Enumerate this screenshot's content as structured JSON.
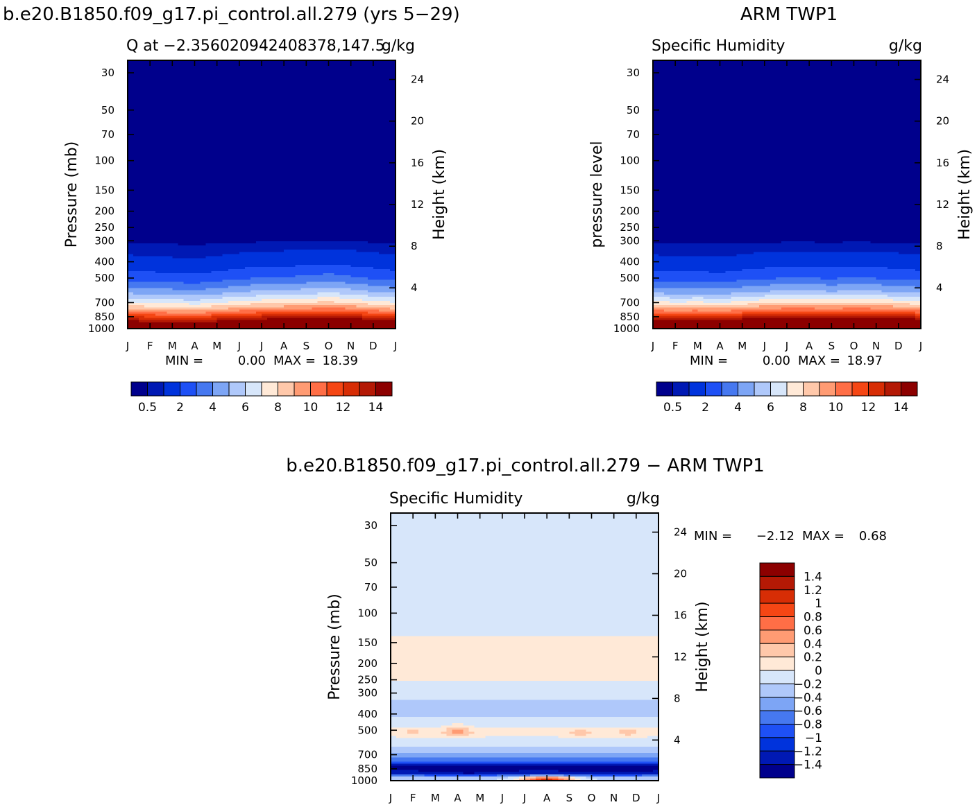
{
  "top_left_header": "b.e20.B1850.f09_g17.pi_control.all.279 (yrs 5−29)",
  "top_right_header": "ARM TWP1",
  "bottom_header": "b.e20.B1850.f09_g17.pi_control.all.279 − ARM TWP1",
  "months": [
    "J",
    "F",
    "M",
    "A",
    "M",
    "J",
    "J",
    "A",
    "S",
    "O",
    "N",
    "D",
    "J"
  ],
  "pressure_ticks": [
    "30",
    "50",
    "70",
    "100",
    "150",
    "200",
    "250",
    "300",
    "400",
    "500",
    "700",
    "850",
    "1000"
  ],
  "pressure_values": [
    30,
    50,
    70,
    100,
    150,
    200,
    250,
    300,
    400,
    500,
    700,
    850,
    1000
  ],
  "height_ticks": [
    "24",
    "20",
    "16",
    "12",
    "8",
    "4"
  ],
  "height_values": [
    24,
    20,
    16,
    12,
    8,
    4
  ],
  "colors": {
    "sequential": [
      "#00008c",
      "#0019b4",
      "#0033dc",
      "#1e50f5",
      "#4678f0",
      "#7da5f5",
      "#afc8fa",
      "#d7e6fa",
      "#ffe9d7",
      "#ffc8aa",
      "#ff9b73",
      "#ff6e46",
      "#f54614",
      "#d72d05",
      "#b41905",
      "#8c0000"
    ],
    "diverging": [
      "#00008c",
      "#0019b4",
      "#0033dc",
      "#1e50f5",
      "#4678f0",
      "#7da5f5",
      "#afc8fa",
      "#d7e6fa",
      "#ffe9d7",
      "#ffc8aa",
      "#ff9b73",
      "#ff6e46",
      "#f54614",
      "#d72d05",
      "#b41905",
      "#8c0000"
    ]
  },
  "chart_data": [
    {
      "type": "heatmap",
      "title": "Q at −2.356020942408378,147.5",
      "left_label": "",
      "right_label": "g/kg",
      "ylabel": "Pressure (mb)",
      "y2label": "Height (km)",
      "min_text": "MIN =",
      "min_value": "0.00",
      "max_text": "MAX =",
      "max_value": "18.39",
      "colorbar_labels": [
        "0.5",
        "2",
        "4",
        "6",
        "8",
        "10",
        "12",
        "14"
      ],
      "levels": [
        0.5,
        1,
        2,
        3,
        4,
        5,
        6,
        7,
        8,
        9,
        10,
        11,
        12,
        13,
        14
      ],
      "profile": [
        [
          30,
          0.0
        ],
        [
          200,
          0.03
        ],
        [
          290,
          0.25
        ],
        [
          320,
          0.6
        ],
        [
          400,
          1.3
        ],
        [
          500,
          2.6
        ],
        [
          600,
          4.6
        ],
        [
          700,
          7.0
        ],
        [
          800,
          10.2
        ],
        [
          900,
          14.0
        ],
        [
          1000,
          18.0
        ]
      ],
      "month_offsets": [
        0.0,
        -0.1,
        -0.15,
        -0.25,
        -0.05,
        0.15,
        0.3,
        0.35,
        0.45,
        0.6,
        0.4,
        0.2,
        0.0
      ]
    },
    {
      "type": "heatmap",
      "title": "Specific Humidity",
      "left_label": "Specific Humidity",
      "right_label": "g/kg",
      "ylabel": "pressure level",
      "y2label": "Height (km)",
      "min_text": "MIN =",
      "min_value": "0.00",
      "max_text": "MAX =",
      "max_value": "18.97",
      "colorbar_labels": [
        "0.5",
        "2",
        "4",
        "6",
        "8",
        "10",
        "12",
        "14"
      ],
      "levels": [
        0.5,
        1,
        2,
        3,
        4,
        5,
        6,
        7,
        8,
        9,
        10,
        11,
        12,
        13,
        14
      ],
      "profile": [
        [
          30,
          0.0
        ],
        [
          200,
          0.03
        ],
        [
          290,
          0.25
        ],
        [
          320,
          0.6
        ],
        [
          400,
          1.3
        ],
        [
          500,
          2.6
        ],
        [
          600,
          4.6
        ],
        [
          700,
          7.3
        ],
        [
          800,
          10.8
        ],
        [
          900,
          14.8
        ],
        [
          1000,
          18.9
        ]
      ],
      "month_offsets": [
        0.0,
        -0.1,
        -0.05,
        -0.15,
        0.05,
        0.2,
        0.3,
        0.3,
        0.2,
        0.35,
        0.25,
        0.15,
        0.0
      ]
    },
    {
      "type": "heatmap",
      "title": "Specific Humidity",
      "left_label": "Specific Humidity",
      "right_label": "g/kg",
      "ylabel": "Pressure (mb)",
      "y2label": "Height (km)",
      "min_text": "MIN =",
      "min_value": "−2.12",
      "max_text": "MAX =",
      "max_value": "0.68",
      "colorbar_labels": [
        "1.4",
        "1.2",
        "1",
        "0.8",
        "0.6",
        "0.4",
        "0.2",
        "0",
        "−0.2",
        "−0.4",
        "−0.6",
        "−0.8",
        "−1",
        "−1.2",
        "−1.4"
      ],
      "levels": [
        -1.4,
        -1.2,
        -1,
        -0.8,
        -0.6,
        -0.4,
        -0.2,
        0,
        0.2,
        0.4,
        0.6,
        0.8,
        1,
        1.2,
        1.4
      ],
      "profile": [
        [
          30,
          -0.1
        ],
        [
          130,
          -0.1
        ],
        [
          145,
          0.1
        ],
        [
          240,
          0.1
        ],
        [
          265,
          -0.1
        ],
        [
          330,
          -0.2
        ],
        [
          380,
          -0.3
        ],
        [
          450,
          -0.1
        ],
        [
          520,
          0.1
        ],
        [
          580,
          -0.1
        ],
        [
          660,
          -0.3
        ],
        [
          720,
          -0.5
        ],
        [
          780,
          -0.9
        ],
        [
          830,
          -1.6
        ],
        [
          900,
          -1.3
        ],
        [
          960,
          -0.3
        ],
        [
          1000,
          -0.2
        ]
      ],
      "anomalies": [
        {
          "month": 3.0,
          "p": 510,
          "dx": 0.5,
          "dp": 35,
          "amp": 0.55
        },
        {
          "month": 1.0,
          "p": 515,
          "dx": 0.4,
          "dp": 25,
          "amp": 0.25
        },
        {
          "month": 8.5,
          "p": 515,
          "dx": 0.5,
          "dp": 25,
          "amp": 0.3
        },
        {
          "month": 10.6,
          "p": 515,
          "dx": 0.45,
          "dp": 25,
          "amp": 0.3
        },
        {
          "month": 7.0,
          "p": 980,
          "dx": 1.2,
          "dp": 40,
          "amp": 1.3
        },
        {
          "month": 3.5,
          "p": 860,
          "dx": 1.0,
          "dp": 40,
          "amp": -0.5
        },
        {
          "month": 9.5,
          "p": 860,
          "dx": 1.0,
          "dp": 40,
          "amp": -0.4
        }
      ]
    }
  ]
}
